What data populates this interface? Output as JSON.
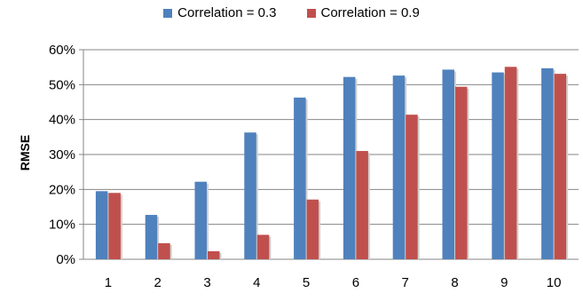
{
  "chart_data": {
    "type": "bar",
    "categories": [
      "1",
      "2",
      "3",
      "4",
      "5",
      "6",
      "7",
      "8",
      "9",
      "10"
    ],
    "series": [
      {
        "name": "Correlation = 0.3",
        "color": "#4F81BD",
        "values": [
          19.5,
          12.7,
          22.2,
          36.3,
          46.3,
          52.2,
          52.6,
          54.3,
          53.5,
          54.7
        ]
      },
      {
        "name": "Correlation = 0.9",
        "color": "#C0504D",
        "values": [
          19.0,
          4.6,
          2.3,
          7.0,
          17.1,
          31.0,
          41.4,
          49.4,
          55.1,
          53.1
        ]
      }
    ],
    "title": "",
    "xlabel": "",
    "ylabel": "RMSE",
    "ylim": [
      0,
      60
    ],
    "yticks": [
      "0%",
      "10%",
      "20%",
      "30%",
      "40%",
      "50%",
      "60%"
    ],
    "grid": true,
    "legend_position": "top-center"
  }
}
